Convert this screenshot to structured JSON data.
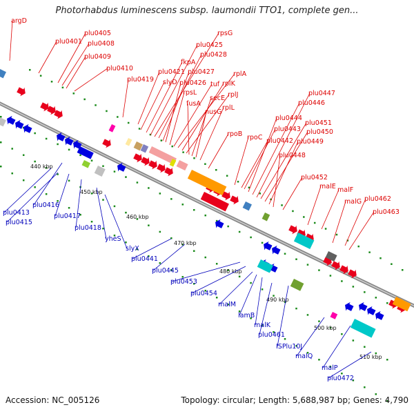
{
  "title": "Photorhabdus luminescens subsp. laumondii TTO1, complete gen...",
  "footer": {
    "accession": "Accession: NC_005126",
    "summary": "Topology: circular; Length: 5,688,987 bp; Genes: 4,790"
  },
  "colors": {
    "forward": "#e8001c",
    "reverse": "#0000e0",
    "backbone": "#888888",
    "dots": "#1a8a1a"
  },
  "ticks": [
    "440 kbp",
    "450 kbp",
    "460 kbp",
    "470 kbp",
    "480 kbp",
    "490 kbp",
    "500 kbp",
    "510 kbp"
  ],
  "labels_forward": [
    "argD",
    "plu0401",
    "plu0405",
    "plu0408",
    "plu0409",
    "plu0410",
    "plu0419",
    "plu0421",
    "slyD",
    "fkpA",
    "plu0425",
    "rpsG",
    "plu0428",
    "plu0427",
    "plu0426",
    "rpsL",
    "tuf",
    "rplA",
    "rplK",
    "rplJ",
    "fusA",
    "secE",
    "nusG",
    "rplL",
    "rpoB",
    "rpoC",
    "plu0442",
    "plu0443",
    "plu0444",
    "plu0446",
    "plu0447",
    "plu0451",
    "plu0450",
    "plu0449",
    "plu0448",
    "plu0452",
    "malE",
    "malF",
    "malG",
    "plu0462",
    "plu0463"
  ],
  "labels_reverse": [
    "plu0413",
    "plu0415",
    "plu0416",
    "plu0417",
    "plu0418",
    "yheS",
    "slyX",
    "plu0441",
    "plu0445",
    "plu0453",
    "plu0454",
    "malM",
    "lamB",
    "malK",
    "plu0461",
    "ISPlu10J",
    "malQ",
    "malP",
    "plu0472"
  ]
}
